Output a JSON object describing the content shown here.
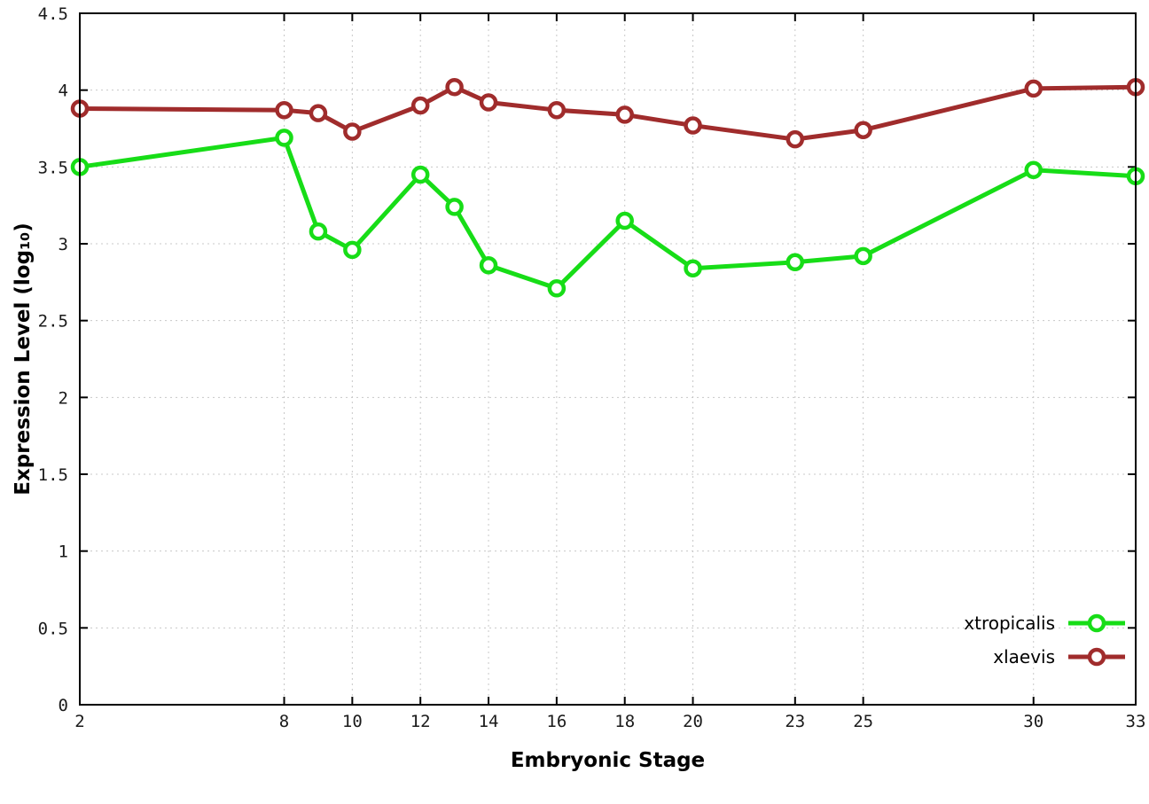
{
  "chart_data": {
    "type": "line",
    "x": [
      2,
      8,
      9,
      10,
      12,
      13,
      14,
      16,
      18,
      20,
      23,
      25,
      30,
      33
    ],
    "series": [
      {
        "name": "xtropicalis",
        "color": "#17dd17",
        "values": [
          3.5,
          3.69,
          3.08,
          2.96,
          3.45,
          3.24,
          2.86,
          2.71,
          3.15,
          2.84,
          2.88,
          2.92,
          3.48,
          3.44
        ]
      },
      {
        "name": "xlaevis",
        "color": "#a02c2c",
        "values": [
          3.88,
          3.87,
          3.85,
          3.73,
          3.9,
          4.02,
          3.92,
          3.87,
          3.84,
          3.77,
          3.68,
          3.74,
          4.01,
          4.02
        ]
      }
    ],
    "title": "",
    "xlabel": "Embryonic Stage",
    "ylabel": "Expression Level (log₁₀)",
    "xlim": [
      2,
      33
    ],
    "ylim": [
      0,
      4.5
    ],
    "xticks": [
      2,
      8,
      10,
      12,
      14,
      16,
      18,
      20,
      23,
      25,
      30,
      33
    ],
    "xtick_labels": [
      "2",
      "8",
      "10",
      "12",
      "14",
      "16",
      "18",
      "20",
      "23",
      "25",
      "30",
      "33"
    ],
    "yticks": [
      0,
      0.5,
      1,
      1.5,
      2,
      2.5,
      3,
      3.5,
      4,
      4.5
    ],
    "ytick_labels": [
      "0",
      "0.5",
      "1",
      "1.5",
      "2",
      "2.5",
      "3",
      "3.5",
      "4",
      "4.5"
    ],
    "grid": true,
    "legend_position": "bottom-right-inside"
  },
  "legend": {
    "items": [
      {
        "label": "xtropicalis",
        "color": "#17dd17"
      },
      {
        "label": "xlaevis",
        "color": "#a02c2c"
      }
    ]
  }
}
